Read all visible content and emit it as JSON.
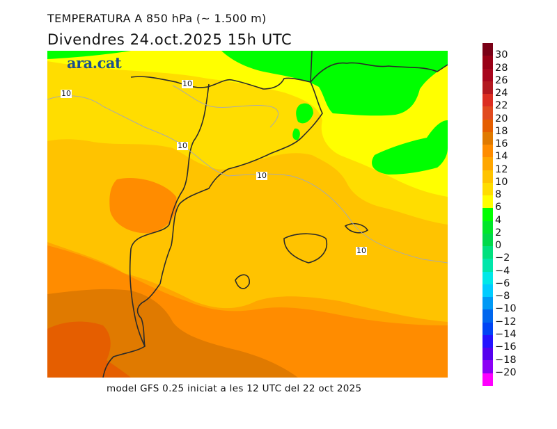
{
  "title": "TEMPERATURA A 850 hPa (~ 1.500 m)",
  "subtitle": "Divendres  24.oct.2025 15h UTC",
  "logo": "ara.cat",
  "footer": "model GFS 0.25 iniciat a les 12 UTC del 22 oct 2025",
  "contour_labels": [
    "10",
    "10",
    "10",
    "10",
    "10"
  ],
  "legend": {
    "labels": [
      "30",
      "28",
      "26",
      "24",
      "22",
      "20",
      "18",
      "16",
      "14",
      "12",
      "10",
      "8",
      "6",
      "4",
      "2",
      "0",
      "−2",
      "−4",
      "−6",
      "−8",
      "−10",
      "−12",
      "−14",
      "−16",
      "−18",
      "−20"
    ],
    "colors": [
      "#7a0016",
      "#990016",
      "#a8051c",
      "#b3181f",
      "#dc2e22",
      "#e14a1f",
      "#e55e00",
      "#e07a00",
      "#ff8c00",
      "#ffa600",
      "#ffc300",
      "#ffdd00",
      "#ffff00",
      "#00ff00",
      "#00e62a",
      "#00d94a",
      "#00e07e",
      "#00e6aa",
      "#00e8e8",
      "#00ccff",
      "#0099f5",
      "#0066ee",
      "#0044f5",
      "#2412ff",
      "#5500ee",
      "#8c00f5",
      "#ff00ff"
    ]
  }
}
